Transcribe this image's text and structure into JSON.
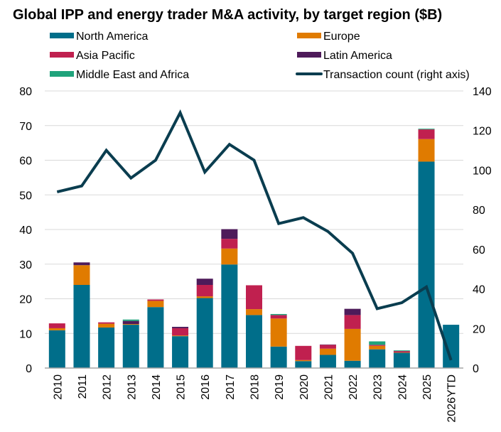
{
  "chart_data": {
    "type": "bar",
    "subtype": "stacked-bar-with-line",
    "title": "Global IPP and energy trader M&A activity, by target region ($B)",
    "xlabel": "",
    "ylabel": "",
    "ylabel_right": "",
    "categories": [
      "2010",
      "2011",
      "2012",
      "2013",
      "2014",
      "2015",
      "2016",
      "2017",
      "2018",
      "2019",
      "2020",
      "2021",
      "2022",
      "2023",
      "2024",
      "2025",
      "2026YTD"
    ],
    "series": [
      {
        "name": "North America",
        "type": "bar",
        "axis": "left",
        "color": "#006E8A",
        "values": [
          10.9,
          24.0,
          11.7,
          12.5,
          17.6,
          9.2,
          20.2,
          29.9,
          15.3,
          6.2,
          2.0,
          3.8,
          2.1,
          5.4,
          4.4,
          59.6,
          12.5
        ]
      },
      {
        "name": "Europe",
        "type": "bar",
        "axis": "left",
        "color": "#E07B00",
        "values": [
          0.6,
          5.7,
          1.1,
          0.2,
          1.8,
          0.2,
          0.5,
          4.6,
          1.7,
          8.1,
          0.3,
          1.8,
          9.2,
          1.0,
          0.1,
          6.5,
          0
        ]
      },
      {
        "name": "Asia Pacific",
        "type": "bar",
        "axis": "left",
        "color": "#C0204F",
        "values": [
          1.4,
          0,
          0.4,
          0,
          0.4,
          2.1,
          3.3,
          2.8,
          6.9,
          1.0,
          4.1,
          1.1,
          4.0,
          0.3,
          0.4,
          2.8,
          0
        ]
      },
      {
        "name": "Latin America",
        "type": "bar",
        "axis": "left",
        "color": "#4E1B5A",
        "values": [
          0,
          0.8,
          0,
          0.9,
          0,
          0.4,
          1.8,
          2.8,
          0,
          0,
          0,
          0.1,
          1.8,
          0,
          0,
          0,
          0
        ]
      },
      {
        "name": "Middle East and Africa",
        "type": "bar",
        "axis": "left",
        "color": "#1FA37B",
        "values": [
          0,
          0,
          0,
          0.4,
          0,
          0,
          0,
          0,
          0,
          0.3,
          0,
          0,
          0,
          1.0,
          0.2,
          0.2,
          0
        ]
      },
      {
        "name": "Transaction count (right axis)",
        "type": "line",
        "axis": "right",
        "color": "#0A3D4F",
        "values": [
          89,
          92,
          110,
          96,
          105,
          129,
          99,
          113,
          105,
          73,
          76,
          69,
          58,
          30,
          33,
          41,
          4
        ]
      }
    ],
    "ylim": [
      0,
      80
    ],
    "yticks": [
      "0",
      "10",
      "20",
      "30",
      "40",
      "50",
      "60",
      "70",
      "80"
    ],
    "ylim_right": [
      0,
      140
    ],
    "yticks_right": [
      "0",
      "20",
      "40",
      "60",
      "80",
      "100",
      "120",
      "140"
    ],
    "grid": true,
    "legend_position": "top",
    "x_tick_rotation": "vertical"
  }
}
